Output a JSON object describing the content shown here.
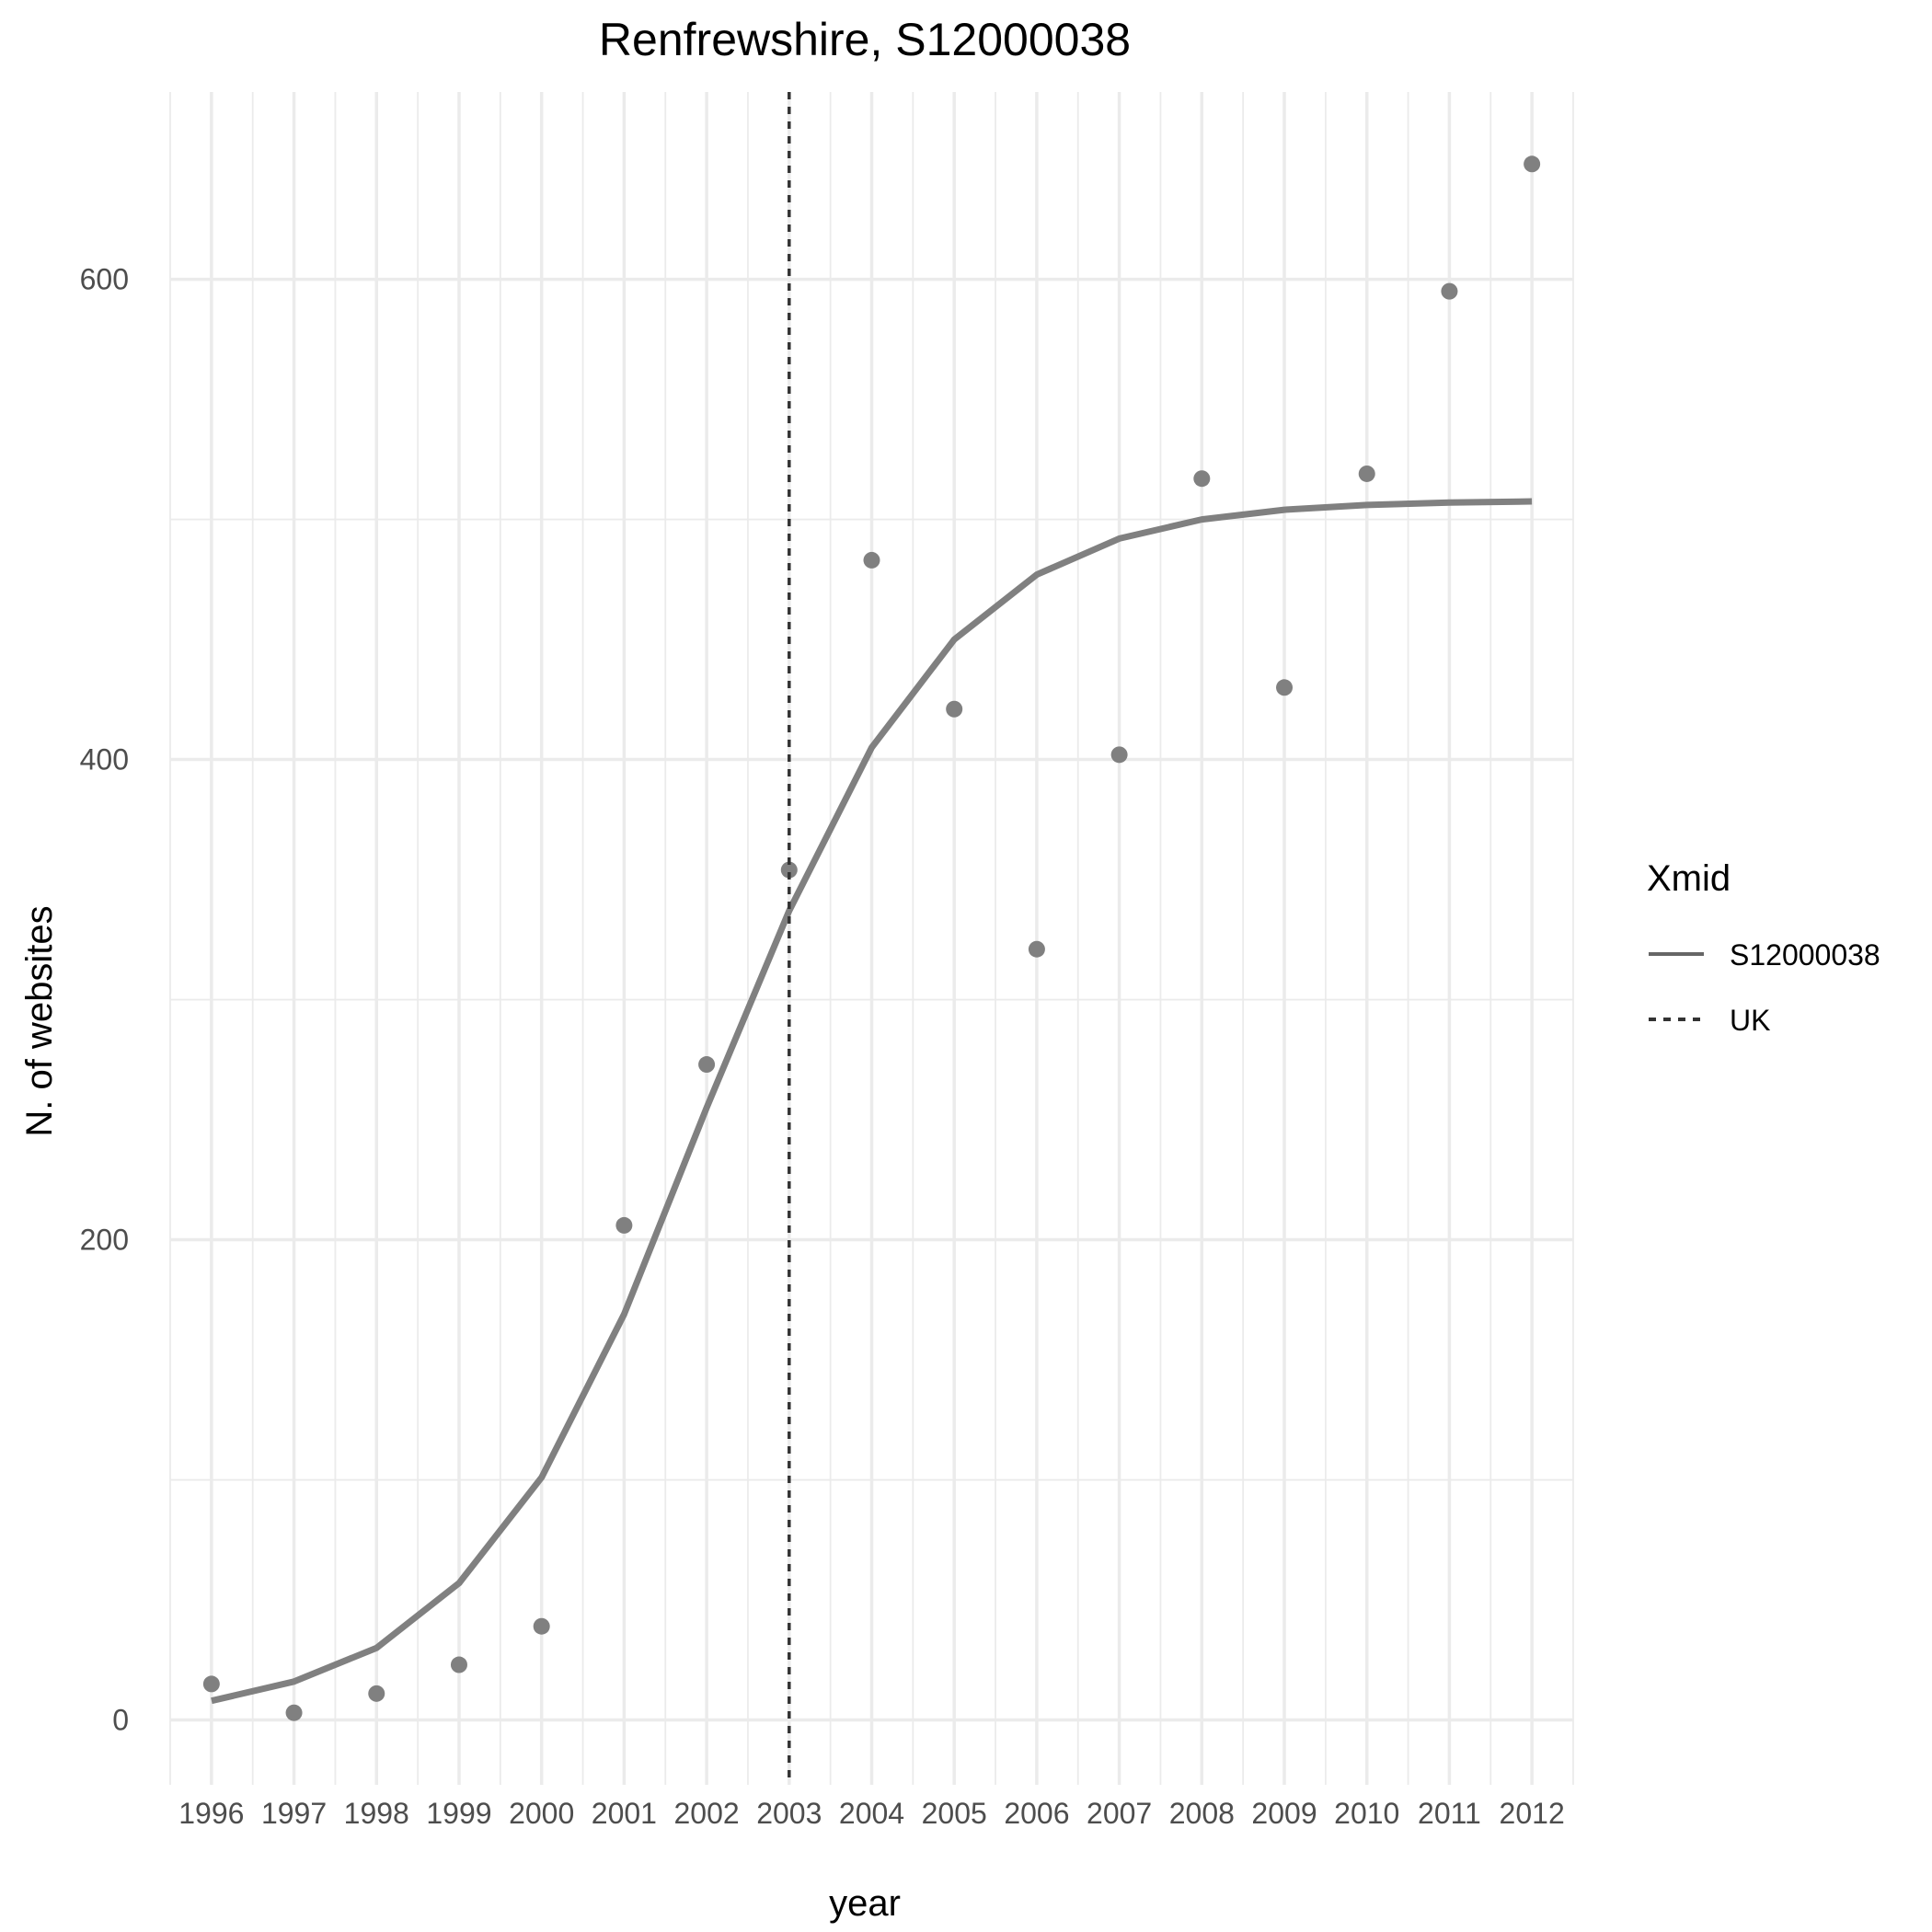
{
  "chart_data": {
    "type": "line",
    "title": "Renfrewshire, S12000038",
    "xlabel": "year",
    "ylabel": "N. of websites",
    "x": [
      1996,
      1997,
      1998,
      1999,
      2000,
      2001,
      2002,
      2003,
      2004,
      2005,
      2006,
      2007,
      2008,
      2009,
      2010,
      2011,
      2012
    ],
    "x_tick_labels": [
      "1996",
      "1997",
      "1998",
      "1999",
      "2000",
      "2001",
      "2002",
      "2003",
      "2004",
      "2005",
      "2006",
      "2007",
      "2008",
      "2009",
      "2010",
      "2011",
      "2012"
    ],
    "y_ticks": [
      0,
      200,
      400,
      600
    ],
    "y_tick_labels": [
      "0",
      "200",
      "400",
      "600"
    ],
    "xlim": [
      1995.5,
      2012.5
    ],
    "ylim": [
      -27,
      678
    ],
    "grid": true,
    "series": [
      {
        "name": "S12000038",
        "kind": "line",
        "linestyle": "solid",
        "color": "#808080",
        "values": [
          8,
          16,
          30,
          57,
          101,
          169,
          255,
          337,
          405,
          450,
          477,
          492,
          500,
          504,
          506,
          507,
          507.5
        ]
      },
      {
        "kind": "points",
        "color": "#808080",
        "values": [
          15,
          3,
          11,
          23,
          39,
          206,
          273,
          354,
          483,
          421,
          321,
          402,
          517,
          430,
          519,
          595,
          648
        ]
      },
      {
        "name": "UK",
        "kind": "vline",
        "linestyle": "dashed",
        "color": "#333333",
        "x_value": 2003
      }
    ],
    "legend": {
      "title": "Xmid",
      "position": "right",
      "entries": [
        {
          "label": "S12000038",
          "linestyle": "solid",
          "color": "#666666"
        },
        {
          "label": "UK",
          "linestyle": "dashed",
          "color": "#333333"
        }
      ]
    }
  }
}
